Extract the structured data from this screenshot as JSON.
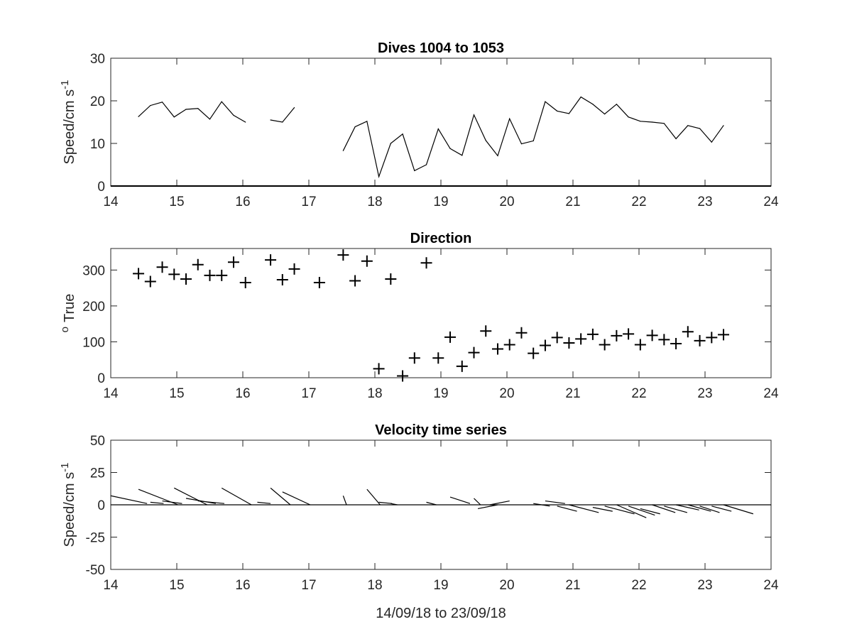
{
  "figure": {
    "xlabel": "14/09/18 to 23/09/18"
  },
  "chart_data": [
    {
      "type": "line",
      "title": "Dives 1004 to 1053",
      "ylabel": "Speed/cm s",
      "ylabel_superscript": "-1",
      "xlim": [
        14,
        24
      ],
      "ylim": [
        0,
        30
      ],
      "xticks": [
        "14",
        "15",
        "16",
        "17",
        "18",
        "19",
        "20",
        "21",
        "22",
        "23",
        "24"
      ],
      "yticks": [
        "0",
        "10",
        "20",
        "30"
      ],
      "grid": false,
      "series": [
        {
          "segments": [
            [
              [
                14.42,
                16.3
              ],
              [
                14.6,
                18.9
              ],
              [
                14.78,
                19.7
              ],
              [
                14.96,
                16.2
              ],
              [
                15.14,
                18.0
              ],
              [
                15.32,
                18.2
              ],
              [
                15.5,
                15.7
              ],
              [
                15.68,
                19.8
              ],
              [
                15.86,
                16.6
              ],
              [
                16.04,
                15.0
              ]
            ],
            [
              [
                16.42,
                15.5
              ],
              [
                16.6,
                15.0
              ],
              [
                16.78,
                18.4
              ]
            ],
            [
              [
                17.52,
                8.3
              ],
              [
                17.7,
                13.9
              ],
              [
                17.88,
                15.2
              ],
              [
                18.06,
                2.2
              ],
              [
                18.24,
                10.0
              ],
              [
                18.42,
                12.2
              ],
              [
                18.6,
                3.6
              ],
              [
                18.78,
                5.0
              ],
              [
                18.96,
                13.4
              ],
              [
                19.14,
                8.8
              ],
              [
                19.32,
                7.2
              ],
              [
                19.5,
                16.7
              ],
              [
                19.68,
                10.7
              ],
              [
                19.86,
                7.1
              ],
              [
                20.04,
                15.8
              ],
              [
                20.22,
                9.9
              ],
              [
                20.4,
                10.6
              ],
              [
                20.58,
                19.8
              ],
              [
                20.76,
                17.6
              ],
              [
                20.94,
                17.0
              ],
              [
                21.12,
                20.9
              ],
              [
                21.3,
                19.2
              ],
              [
                21.48,
                16.9
              ],
              [
                21.66,
                19.2
              ],
              [
                21.84,
                16.2
              ],
              [
                22.02,
                15.2
              ],
              [
                22.2,
                15.0
              ],
              [
                22.38,
                14.7
              ],
              [
                22.56,
                11.1
              ],
              [
                22.74,
                14.2
              ],
              [
                22.92,
                13.5
              ],
              [
                23.1,
                10.3
              ],
              [
                23.28,
                14.2
              ]
            ]
          ]
        }
      ]
    },
    {
      "type": "scatter",
      "marker": "+",
      "title": "Direction",
      "ylabel": "True",
      "ylabel_prefix": "o",
      "xlim": [
        14,
        24
      ],
      "ylim": [
        0,
        360
      ],
      "xticks": [
        "14",
        "15",
        "16",
        "17",
        "18",
        "19",
        "20",
        "21",
        "22",
        "23",
        "24"
      ],
      "yticks": [
        "0",
        "100",
        "200",
        "300"
      ],
      "grid": false,
      "series": [
        {
          "points": [
            [
              14.42,
              290
            ],
            [
              14.6,
              268
            ],
            [
              14.78,
              308
            ],
            [
              14.96,
              288
            ],
            [
              15.14,
              275
            ],
            [
              15.32,
              315
            ],
            [
              15.5,
              285
            ],
            [
              15.68,
              285
            ],
            [
              15.86,
              322
            ],
            [
              16.04,
              265
            ],
            [
              16.42,
              328
            ],
            [
              16.6,
              273
            ],
            [
              16.78,
              303
            ],
            [
              17.16,
              265
            ],
            [
              17.52,
              342
            ],
            [
              17.7,
              270
            ],
            [
              17.88,
              325
            ],
            [
              18.06,
              25
            ],
            [
              18.24,
              275
            ],
            [
              18.42,
              5
            ],
            [
              18.6,
              55
            ],
            [
              18.78,
              320
            ],
            [
              18.96,
              55
            ],
            [
              19.14,
              113
            ],
            [
              19.32,
              32
            ],
            [
              19.5,
              70
            ],
            [
              19.68,
              130
            ],
            [
              19.86,
              80
            ],
            [
              20.04,
              92
            ],
            [
              20.22,
              125
            ],
            [
              20.4,
              68
            ],
            [
              20.58,
              90
            ],
            [
              20.76,
              112
            ],
            [
              20.94,
              97
            ],
            [
              21.12,
              108
            ],
            [
              21.3,
              121
            ],
            [
              21.48,
              92
            ],
            [
              21.66,
              117
            ],
            [
              21.84,
              122
            ],
            [
              22.02,
              92
            ],
            [
              22.2,
              118
            ],
            [
              22.38,
              106
            ],
            [
              22.56,
              95
            ],
            [
              22.74,
              128
            ],
            [
              22.92,
              103
            ],
            [
              23.1,
              112
            ],
            [
              23.28,
              120
            ]
          ]
        }
      ]
    },
    {
      "type": "quiver",
      "title": "Velocity time series",
      "ylabel": "Speed/cm s",
      "ylabel_superscript": "-1",
      "xlim": [
        14,
        24
      ],
      "ylim": [
        -50,
        50
      ],
      "xticks": [
        "14",
        "15",
        "16",
        "17",
        "18",
        "19",
        "20",
        "21",
        "22",
        "23",
        "24"
      ],
      "yticks": [
        "-50",
        "-25",
        "0",
        "25",
        "50"
      ],
      "grid": false,
      "baseline": 0,
      "series": [
        {
          "vectors": [
            [
              14.0,
              7,
              0.55,
              -6
            ],
            [
              14.42,
              12,
              0.6,
              -12
            ],
            [
              14.6,
              2,
              0.2,
              -1
            ],
            [
              14.78,
              3,
              0.3,
              -2
            ],
            [
              14.96,
              13,
              0.5,
              -13
            ],
            [
              15.14,
              5,
              0.45,
              -4
            ],
            [
              15.32,
              3,
              0.4,
              -2
            ],
            [
              15.68,
              13,
              0.45,
              -13
            ],
            [
              16.22,
              2,
              0.2,
              -1
            ],
            [
              16.42,
              13,
              0.3,
              -13
            ],
            [
              16.6,
              10,
              0.42,
              -10
            ],
            [
              17.52,
              7,
              0.05,
              -7
            ],
            [
              17.88,
              12,
              0.2,
              -12
            ],
            [
              18.06,
              2,
              0.2,
              -1
            ],
            [
              18.24,
              1,
              0.1,
              -1
            ],
            [
              18.78,
              2,
              0.15,
              -2
            ],
            [
              19.14,
              6,
              0.3,
              -5
            ],
            [
              19.5,
              5,
              0.1,
              -5
            ],
            [
              19.86,
              0,
              -0.3,
              -3
            ],
            [
              20.04,
              3,
              -0.3,
              -3
            ],
            [
              20.4,
              1,
              0.25,
              -2
            ],
            [
              20.58,
              3,
              0.3,
              -2
            ],
            [
              20.76,
              -1,
              0.3,
              -4
            ],
            [
              20.94,
              0,
              0.45,
              -6
            ],
            [
              21.3,
              -2,
              0.3,
              -3
            ],
            [
              21.48,
              -1,
              0.45,
              -6
            ],
            [
              21.66,
              0,
              0.45,
              -10
            ],
            [
              21.84,
              -1,
              0.4,
              -7
            ],
            [
              22.02,
              -3,
              0.3,
              -4
            ],
            [
              22.2,
              0,
              0.35,
              -6
            ],
            [
              22.38,
              -1,
              0.35,
              -5
            ],
            [
              22.56,
              0,
              0.35,
              -4
            ],
            [
              22.74,
              0,
              0.35,
              -5
            ],
            [
              22.92,
              -1,
              0.3,
              -5
            ],
            [
              23.1,
              -1,
              0.3,
              -4
            ],
            [
              23.28,
              0,
              0.45,
              -7
            ]
          ]
        }
      ]
    }
  ]
}
